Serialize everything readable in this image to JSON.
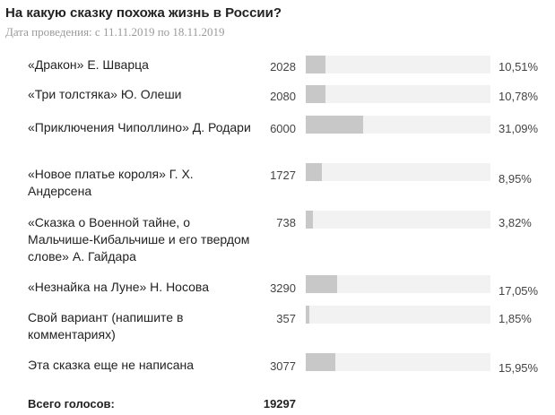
{
  "poll": {
    "title": "На какую сказку похожа жизнь в России?",
    "date_line": "Дата проведения: с 11.11.2019 по 18.11.2019",
    "options": [
      {
        "label": "«Дракон» Е. Шварца",
        "votes": "2028",
        "percent_text": "10,51%",
        "percent": 10.51
      },
      {
        "label": "«Три толстяка» Ю. Олеши",
        "votes": "2080",
        "percent_text": "10,78%",
        "percent": 10.78
      },
      {
        "label": "«Приключения Чиполлино» Д. Родари",
        "votes": "6000",
        "percent_text": "31,09%",
        "percent": 31.09
      },
      {
        "label": "«Новое платье короля» Г. Х. Андерсена",
        "votes": "1727",
        "percent_text": "8,95%",
        "percent": 8.95
      },
      {
        "label": "«Сказка о Военной тайне, о Мальчише-Кибальчише и его твердом слове» А. Гайдара",
        "votes": "738",
        "percent_text": "3,82%",
        "percent": 3.82
      },
      {
        "label": "«Незнайка на Луне» Н. Носова",
        "votes": "3290",
        "percent_text": "17,05%",
        "percent": 17.05
      },
      {
        "label": "Свой вариант (напишите в комментариях)",
        "votes": "357",
        "percent_text": "1,85%",
        "percent": 1.85
      },
      {
        "label": "Эта сказка еще не написана",
        "votes": "3077",
        "percent_text": "15,95%",
        "percent": 15.95
      }
    ],
    "total_label": "Всего голосов:",
    "total_votes": "19297"
  },
  "colors": {
    "bar_fill": "#c8c8c8",
    "bar_track": "#f2f2f2",
    "date_text": "#9a9a9a"
  }
}
